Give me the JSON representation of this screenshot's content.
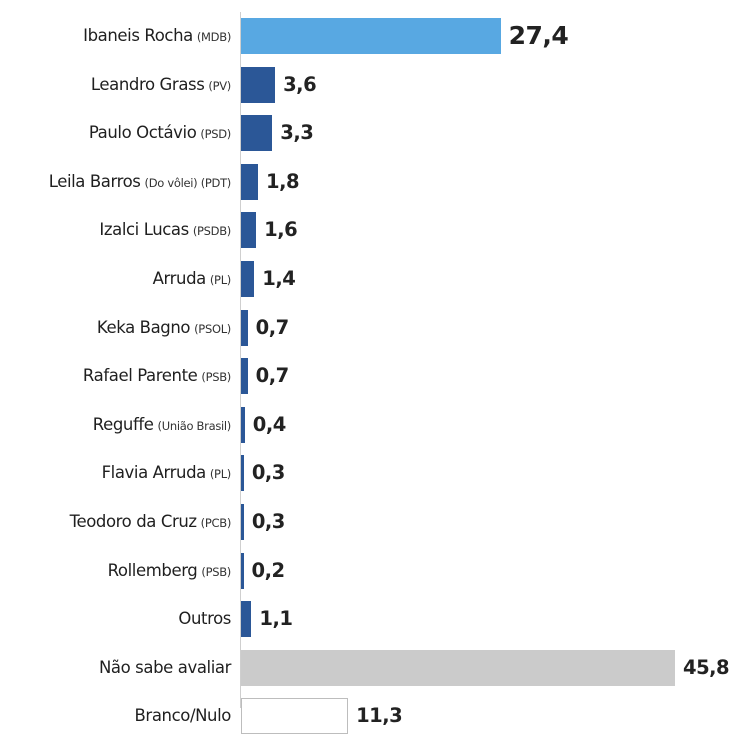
{
  "chart_data": {
    "type": "bar",
    "orientation": "horizontal",
    "categories": [
      "Ibaneis Rocha (MDB)",
      "Leandro Grass (PV)",
      "Paulo Octávio (PSD)",
      "Leila Barros (Do vôlei) (PDT)",
      "Izalci Lucas (PSDB)",
      "Arruda (PL)",
      "Keka Bagno (PSOL)",
      "Rafael Parente (PSB)",
      "Reguffe (União Brasil)",
      "Flavia Arruda (PL)",
      "Teodoro da Cruz (PCB)",
      "Rollemberg (PSB)",
      "Outros",
      "Não sabe avaliar",
      "Branco/Nulo"
    ],
    "rows": [
      {
        "name": "Ibaneis Rocha",
        "party": "(MDB)",
        "value": 27.4,
        "value_label": "27,4",
        "color": "#58a8e2",
        "border": ""
      },
      {
        "name": "Leandro Grass",
        "party": "(PV)",
        "value": 3.6,
        "value_label": "3,6",
        "color": "#2b5797",
        "border": ""
      },
      {
        "name": "Paulo Octávio",
        "party": "(PSD)",
        "value": 3.3,
        "value_label": "3,3",
        "color": "#2b5797",
        "border": ""
      },
      {
        "name": "Leila Barros",
        "party": "(Do vôlei) (PDT)",
        "value": 1.8,
        "value_label": "1,8",
        "color": "#2b5797",
        "border": ""
      },
      {
        "name": "Izalci Lucas",
        "party": "(PSDB)",
        "value": 1.6,
        "value_label": "1,6",
        "color": "#2b5797",
        "border": ""
      },
      {
        "name": "Arruda",
        "party": "(PL)",
        "value": 1.4,
        "value_label": "1,4",
        "color": "#2b5797",
        "border": ""
      },
      {
        "name": "Keka Bagno",
        "party": "(PSOL)",
        "value": 0.7,
        "value_label": "0,7",
        "color": "#2b5797",
        "border": ""
      },
      {
        "name": "Rafael Parente",
        "party": "(PSB)",
        "value": 0.7,
        "value_label": "0,7",
        "color": "#2b5797",
        "border": ""
      },
      {
        "name": "Reguffe",
        "party": "(União Brasil)",
        "value": 0.4,
        "value_label": "0,4",
        "color": "#2b5797",
        "border": ""
      },
      {
        "name": "Flavia Arruda",
        "party": "(PL)",
        "value": 0.3,
        "value_label": "0,3",
        "color": "#2b5797",
        "border": ""
      },
      {
        "name": "Teodoro da Cruz",
        "party": "(PCB)",
        "value": 0.3,
        "value_label": "0,3",
        "color": "#2b5797",
        "border": ""
      },
      {
        "name": "Rollemberg",
        "party": "(PSB)",
        "value": 0.2,
        "value_label": "0,2",
        "color": "#2b5797",
        "border": ""
      },
      {
        "name": "Outros",
        "party": "",
        "value": 1.1,
        "value_label": "1,1",
        "color": "#2b5797",
        "border": ""
      },
      {
        "name": "Não sabe avaliar",
        "party": "",
        "value": 45.8,
        "value_label": "45,8",
        "color": "#cbcbcb",
        "border": ""
      },
      {
        "name": "Branco/Nulo",
        "party": "",
        "value": 11.3,
        "value_label": "11,3",
        "color": "#ffffff",
        "border": "#bdbdbd"
      }
    ],
    "title": "",
    "xlabel": "",
    "ylabel": "",
    "xlim": [
      0,
      45.8
    ],
    "grid": false,
    "legend": "none"
  }
}
